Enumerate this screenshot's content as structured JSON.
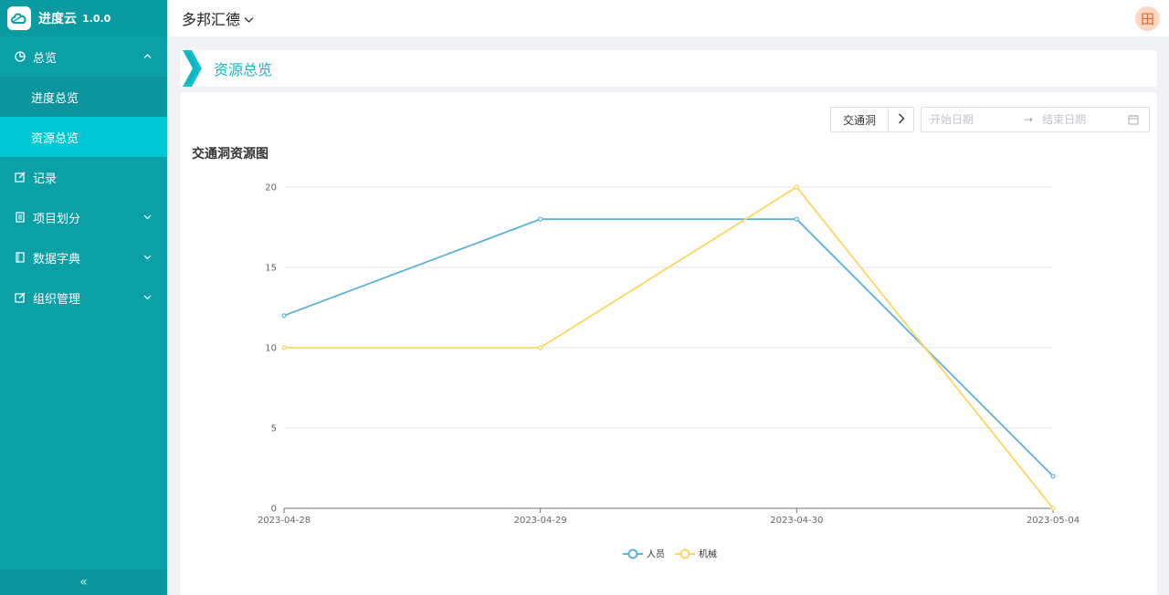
{
  "app": {
    "name": "进度云",
    "version": "1.0.0"
  },
  "sidebar": {
    "items": [
      {
        "label": "总览",
        "icon": "pie-chart-icon",
        "expanded": true,
        "children": [
          {
            "label": "进度总览",
            "active": false
          },
          {
            "label": "资源总览",
            "active": true
          }
        ]
      },
      {
        "label": "记录",
        "icon": "edit-icon"
      },
      {
        "label": "项目划分",
        "icon": "list-icon"
      },
      {
        "label": "数据字典",
        "icon": "book-icon"
      },
      {
        "label": "组织管理",
        "icon": "edit-icon"
      }
    ],
    "collapse_label": "«"
  },
  "header": {
    "org_name": "多邦汇德",
    "avatar_text": "田"
  },
  "page": {
    "title": "资源总览"
  },
  "toolbar": {
    "tunnel_button": "交通洞",
    "next_icon": "chevron-right-icon",
    "date_start_placeholder": "开始日期",
    "date_end_placeholder": "结束日期",
    "date_separator": "→",
    "calendar_icon": "calendar-icon"
  },
  "colors": {
    "sidebar": "#0b9fa6",
    "active": "#00c8d2",
    "accent": "#1ab5c4",
    "series_person": "#5ab1d9",
    "series_machine": "#fcd660"
  },
  "chart_data": {
    "type": "line",
    "title": "交通洞资源图",
    "categories": [
      "2023-04-28",
      "2023-04-29",
      "2023-04-30",
      "2023-05-04"
    ],
    "series": [
      {
        "name": "人员",
        "values": [
          12,
          18,
          18,
          2
        ],
        "color": "#5ab1d9"
      },
      {
        "name": "机械",
        "values": [
          10,
          10,
          20,
          0
        ],
        "color": "#fcd660"
      }
    ],
    "ylim": [
      0,
      20
    ],
    "yticks": [
      0,
      5,
      10,
      15,
      20
    ],
    "grid": true,
    "legend": "bottom-center"
  }
}
